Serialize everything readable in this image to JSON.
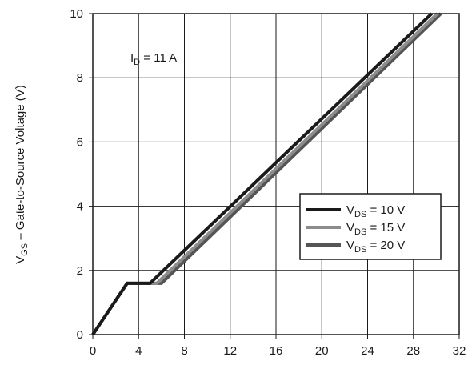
{
  "chart_data": {
    "type": "line",
    "title": "",
    "xlabel": "",
    "ylabel": {
      "var_main": "V",
      "var_sub": "GS",
      "text": " – Gate-to-Source Voltage (V)"
    },
    "xlim": [
      0,
      32
    ],
    "ylim": [
      0,
      10
    ],
    "x_ticks": [
      "0",
      "4",
      "8",
      "12",
      "16",
      "20",
      "24",
      "28",
      "32"
    ],
    "y_ticks": [
      "0",
      "2",
      "4",
      "6",
      "8",
      "10"
    ],
    "grid": true,
    "legend_position": "middle-right",
    "annotation": {
      "main": "I",
      "sub": "D",
      "text": " = 11 A"
    },
    "series": [
      {
        "name_main": "V",
        "name_sub": "DS",
        "name_text": " = 10 V",
        "color": "#1a1a1a",
        "points": [
          [
            0,
            0
          ],
          [
            3.0,
            1.6
          ],
          [
            5.0,
            1.6
          ],
          [
            29.6,
            10
          ]
        ]
      },
      {
        "name_main": "V",
        "name_sub": "DS",
        "name_text": " = 15 V",
        "color": "#8c8c8c",
        "points": [
          [
            0,
            0
          ],
          [
            3.0,
            1.6
          ],
          [
            5.6,
            1.6
          ],
          [
            30.1,
            10
          ]
        ]
      },
      {
        "name_main": "V",
        "name_sub": "DS",
        "name_text": " = 20 V",
        "color": "#555555",
        "points": [
          [
            0,
            0
          ],
          [
            3.0,
            1.6
          ],
          [
            6.0,
            1.6
          ],
          [
            30.4,
            10
          ]
        ]
      }
    ]
  }
}
